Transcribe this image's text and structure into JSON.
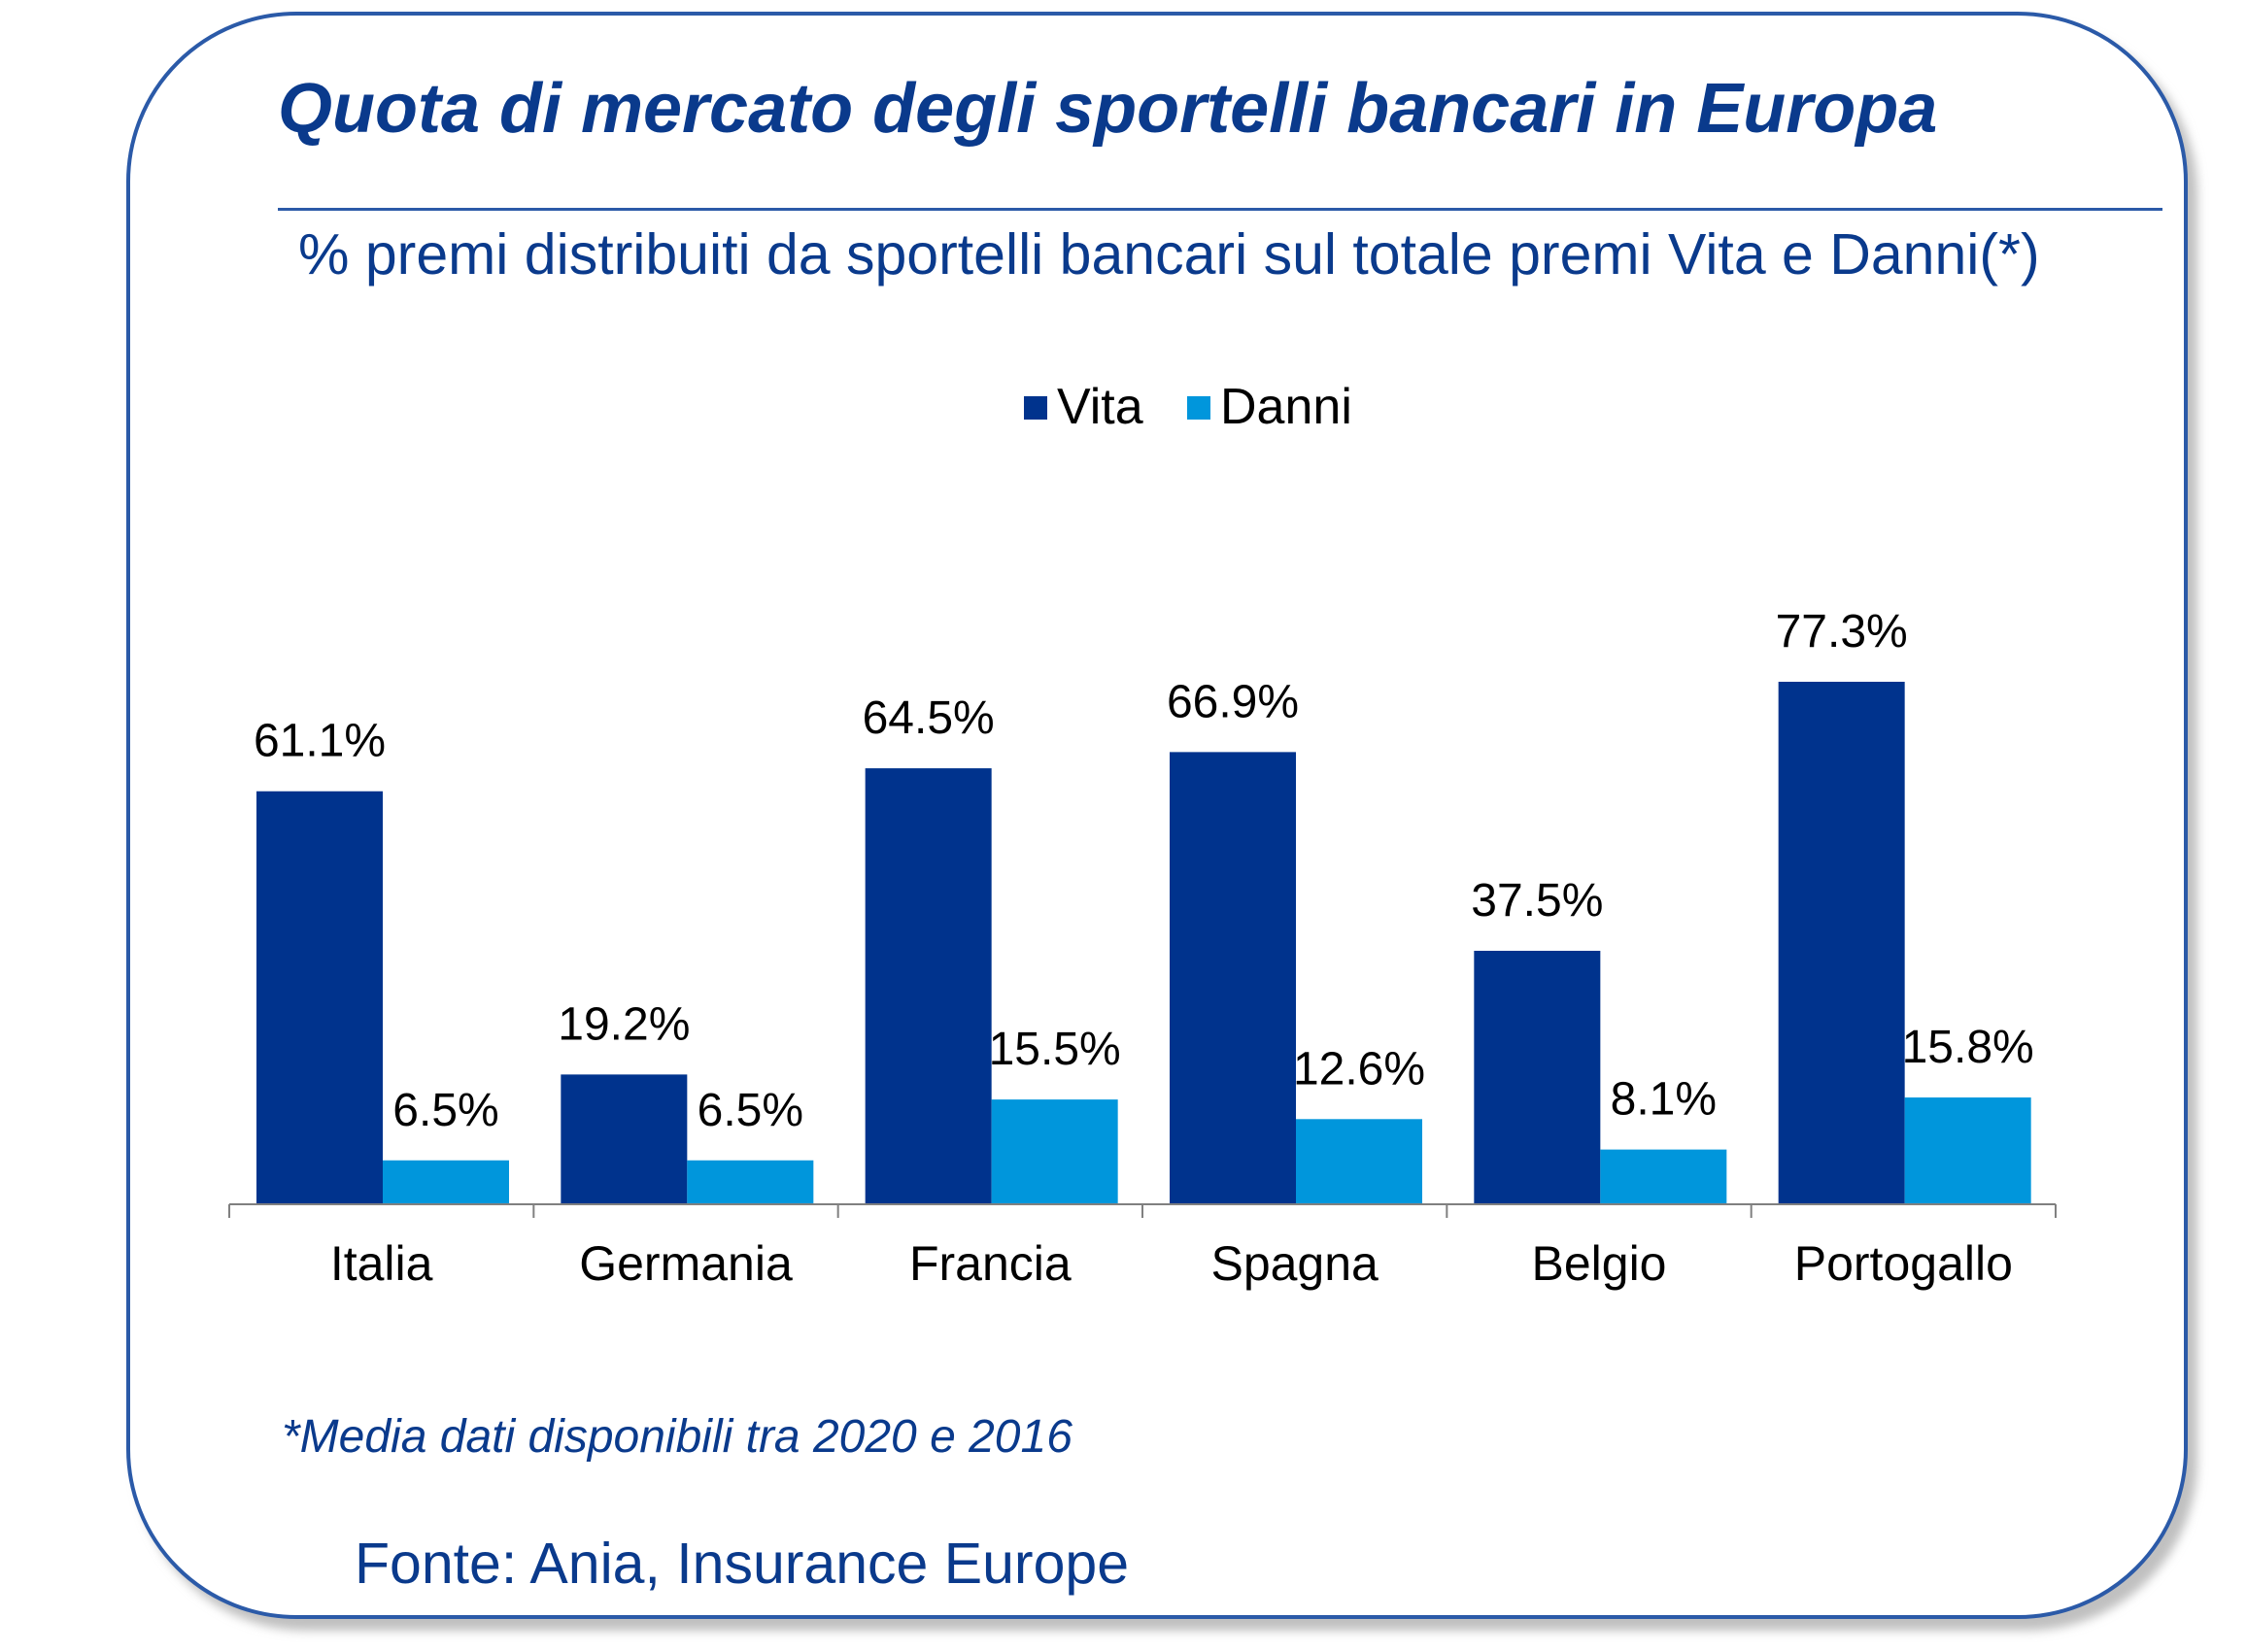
{
  "title": "Quota di mercato degli sportelli bancari in Europa",
  "subtitle": "% premi distribuiti da sportelli bancari sul totale premi Vita e Danni(*)",
  "footnote": "*Media dati disponibili tra 2020 e 2016",
  "source": "Fonte: Ania, Insurance Europe",
  "colors": {
    "vita": "#00338d",
    "danni": "#0096dc",
    "text": "#0a3a8c",
    "frame": "#2b5aa8"
  },
  "chart_data": {
    "type": "bar",
    "categories": [
      "Italia",
      "Germania",
      "Francia",
      "Spagna",
      "Belgio",
      "Portogallo"
    ],
    "series": [
      {
        "name": "Vita",
        "values": [
          61.1,
          19.2,
          64.5,
          66.9,
          37.5,
          77.3
        ],
        "labels": [
          "61.1%",
          "19.2%",
          "64.5%",
          "66.9%",
          "37.5%",
          "77.3%"
        ]
      },
      {
        "name": "Danni",
        "values": [
          6.5,
          6.5,
          15.5,
          12.6,
          8.1,
          15.8
        ],
        "labels": [
          "6.5%",
          "6.5%",
          "15.5%",
          "12.6%",
          "8.1%",
          "15.8%"
        ]
      }
    ],
    "ylim": [
      0,
      100
    ],
    "legend": "top-center",
    "grid": false
  }
}
